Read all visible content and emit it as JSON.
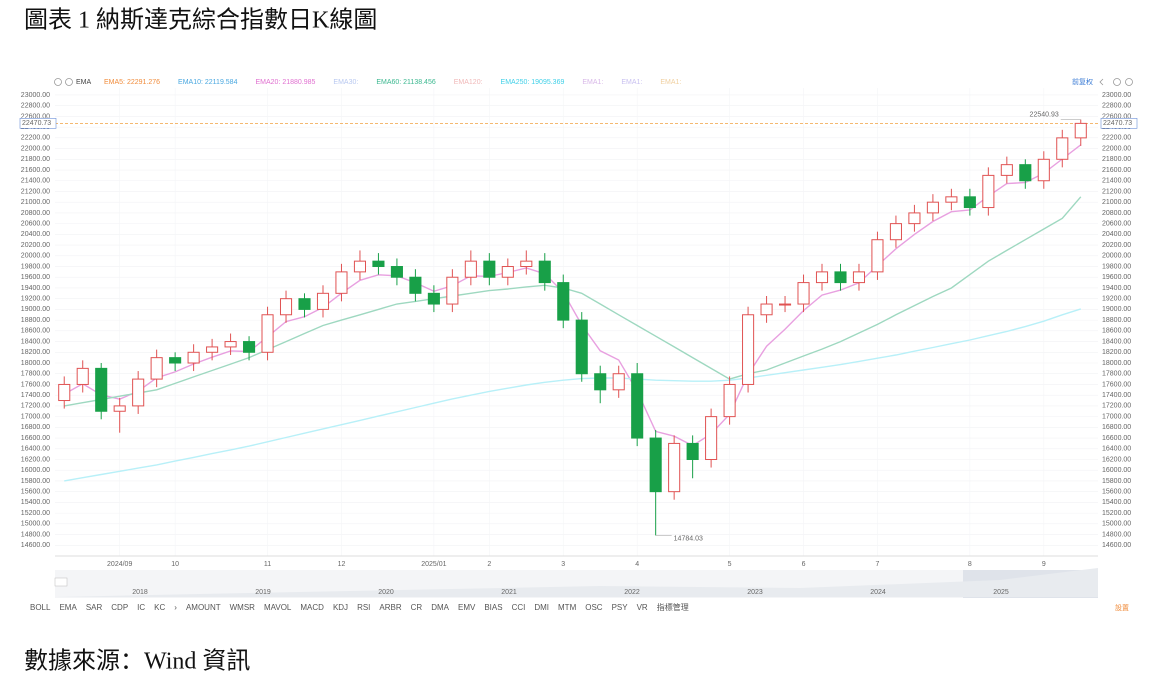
{
  "chart_data": {
    "type": "candlestick",
    "title": "圖表 1 納斯達克綜合指數日K線圖",
    "source": "數據來源：Wind 資訊",
    "toolbar": "EMA",
    "adjust": "前复权",
    "settings": "設置",
    "legend": [
      {
        "text": "EMA5:  22291.276",
        "color": "#f08c3c"
      },
      {
        "text": "EMA10:  22119.584",
        "color": "#4aa8e0"
      },
      {
        "text": "EMA20:  21880.985",
        "color": "#e070d0"
      },
      {
        "text": "EMA30:",
        "color": "#b8c8f0"
      },
      {
        "text": "EMA60:  21138.456",
        "color": "#3cb890"
      },
      {
        "text": "EMA120:",
        "color": "#f0b8b8"
      },
      {
        "text": "EMA250:  19095.369",
        "color": "#40d0e8"
      },
      {
        "text": "EMA1:",
        "color": "#d8b8e8"
      },
      {
        "text": "EMA1:",
        "color": "#c8c0f0"
      },
      {
        "text": "EMA1:",
        "color": "#f0d0a0"
      }
    ],
    "tabs": [
      "BOLL",
      "EMA",
      "SAR",
      "CDP",
      "IC",
      "KC",
      "›",
      "AMOUNT",
      "WMSR",
      "MAVOL",
      "MACD",
      "KDJ",
      "RSI",
      "ARBR",
      "CR",
      "DMA",
      "EMV",
      "BIAS",
      "CCI",
      "DMI",
      "MTM",
      "OSC",
      "PSY",
      "VR",
      "指標管理"
    ],
    "navigator_years": [
      "2018",
      "2019",
      "2020",
      "2021",
      "2022",
      "2023",
      "2024",
      "2025"
    ],
    "categories": [
      null,
      null,
      null,
      "2024/09",
      null,
      null,
      "10",
      null,
      null,
      null,
      null,
      "11",
      null,
      null,
      null,
      "12",
      null,
      null,
      null,
      null,
      "2025/01",
      null,
      null,
      "2",
      null,
      null,
      null,
      "3",
      null,
      null,
      null,
      "4",
      null,
      null,
      null,
      null,
      "5",
      null,
      null,
      null,
      "6",
      null,
      null,
      null,
      "7",
      null,
      null,
      null,
      null,
      "8",
      null,
      null,
      null,
      "9",
      null,
      null
    ],
    "open": [
      17300,
      17600,
      17900,
      17100,
      17200,
      17700,
      18100,
      18000,
      18200,
      18300,
      18400,
      18200,
      18900,
      19200,
      19000,
      19300,
      19700,
      19900,
      19800,
      19600,
      19300,
      19100,
      19600,
      19900,
      19600,
      19800,
      19900,
      19500,
      18800,
      17800,
      17500,
      17800,
      16600,
      15600,
      16500,
      16200,
      17000,
      17600,
      18900,
      19100,
      19100,
      19500,
      19700,
      19500,
      19700,
      20300,
      20600,
      20800,
      21000,
      21100,
      20900,
      21500,
      21700,
      21400,
      21800,
      22200
    ],
    "close": [
      17600,
      17900,
      17100,
      17200,
      17700,
      18100,
      18000,
      18200,
      18300,
      18400,
      18200,
      18900,
      19200,
      19000,
      19300,
      19700,
      19900,
      19800,
      19600,
      19300,
      19100,
      19600,
      19900,
      19600,
      19800,
      19900,
      19500,
      18800,
      17800,
      17500,
      17800,
      16600,
      15600,
      16500,
      16200,
      17000,
      17600,
      18900,
      19100,
      19100,
      19500,
      19700,
      19500,
      19700,
      20300,
      20600,
      20800,
      21000,
      21100,
      20900,
      21500,
      21700,
      21400,
      21800,
      22200,
      22470
    ],
    "high": [
      17750,
      18050,
      18000,
      17350,
      17850,
      18250,
      18200,
      18350,
      18450,
      18550,
      18500,
      19050,
      19350,
      19300,
      19450,
      19850,
      20100,
      20050,
      19950,
      19750,
      19450,
      19750,
      20100,
      20050,
      19950,
      20100,
      20050,
      19650,
      18950,
      17950,
      17950,
      18000,
      16750,
      16650,
      16650,
      17150,
      17750,
      19050,
      19250,
      19250,
      19650,
      19850,
      19850,
      19850,
      20450,
      20750,
      20950,
      21150,
      21250,
      21250,
      21650,
      21850,
      21800,
      21950,
      22350,
      22540.93
    ],
    "low": [
      17150,
      17450,
      16950,
      16700,
      17050,
      17550,
      17850,
      17850,
      18050,
      18150,
      18050,
      18050,
      18750,
      18850,
      18850,
      19150,
      19550,
      19650,
      19450,
      19150,
      18950,
      18950,
      19450,
      19450,
      19450,
      19650,
      19350,
      18650,
      17650,
      17250,
      17350,
      16450,
      14784.03,
      15450,
      15850,
      16050,
      16850,
      17450,
      18750,
      18950,
      18950,
      19350,
      19350,
      19350,
      19550,
      20150,
      20450,
      20650,
      20850,
      20750,
      20750,
      21350,
      21250,
      21250,
      21650,
      22050
    ],
    "up_color": "#e05252",
    "down_color": "#18a048",
    "series": [
      {
        "name": "EMA20",
        "color": "#e8a0e0",
        "values": [
          17420,
          17612,
          17407,
          17324,
          17474,
          17725,
          17835,
          17981,
          18109,
          18225,
          18215,
          18489,
          18773,
          18864,
          19038,
          19303,
          19542,
          19645,
          19627,
          19496,
          19338,
          19443,
          19626,
          19616,
          19689,
          19773,
          19664,
          19318,
          18711,
          18227,
          18056,
          17474,
          16724,
          16634,
          16460,
          16676,
          17046,
          17788,
          18313,
          18628,
          18977,
          19266,
          19360,
          19496,
          19818,
          20131,
          20399,
          20639,
          20823,
          20854,
          21112,
          21347,
          21368,
          21541,
          21805,
          22071
        ]
      },
      {
        "name": "EMA60",
        "color": "#9ed8c0",
        "values": [
          17200,
          17260,
          17320,
          17380,
          17440,
          17500,
          17620,
          17740,
          17860,
          17980,
          18100,
          18250,
          18400,
          18550,
          18700,
          18800,
          18900,
          19000,
          19100,
          19150,
          19200,
          19250,
          19300,
          19350,
          19380,
          19420,
          19450,
          19400,
          19300,
          19100,
          18900,
          18700,
          18500,
          18300,
          18100,
          17900,
          17700,
          17800,
          17870,
          18000,
          18130,
          18260,
          18400,
          18560,
          18720,
          18900,
          19070,
          19240,
          19400,
          19650,
          19900,
          20100,
          20300,
          20500,
          20700,
          21100
        ]
      },
      {
        "name": "EMA250",
        "color": "#b8f0f8",
        "values": [
          15800,
          15860,
          15920,
          15980,
          16040,
          16100,
          16170,
          16240,
          16310,
          16380,
          16450,
          16530,
          16610,
          16690,
          16770,
          16850,
          16930,
          17010,
          17090,
          17170,
          17250,
          17330,
          17400,
          17470,
          17530,
          17590,
          17640,
          17680,
          17710,
          17720,
          17720,
          17700,
          17680,
          17670,
          17660,
          17660,
          17680,
          17720,
          17770,
          17820,
          17870,
          17920,
          17970,
          18030,
          18090,
          18150,
          18220,
          18290,
          18360,
          18430,
          18510,
          18590,
          18680,
          18780,
          18900,
          19010
        ]
      }
    ],
    "price_line": {
      "value": 22470.73,
      "label": "22470.73",
      "color": "#f0a040"
    },
    "high_mark": {
      "value": 22540.93,
      "label": "22540.93",
      "index": 55
    },
    "low_mark": {
      "value": 14784.03,
      "label": "14784.03",
      "index": 32
    },
    "ylim": [
      14400,
      23130
    ],
    "yticks": [
      {
        "value": 23000,
        "label": "23000.00"
      },
      {
        "value": 22800,
        "label": "22800.00"
      },
      {
        "value": 22600,
        "label": "22600.00"
      },
      {
        "value": 22400,
        "label": "22400.00"
      },
      {
        "value": 22200,
        "label": "22200.00"
      },
      {
        "value": 22000,
        "label": "22000.00"
      },
      {
        "value": 21800,
        "label": "21800.00"
      },
      {
        "value": 21600,
        "label": "21600.00"
      },
      {
        "value": 21400,
        "label": "21400.00"
      },
      {
        "value": 21200,
        "label": "21200.00"
      },
      {
        "value": 21000,
        "label": "21000.00"
      },
      {
        "value": 20800,
        "label": "20800.00"
      },
      {
        "value": 20600,
        "label": "20600.00"
      },
      {
        "value": 20400,
        "label": "20400.00"
      },
      {
        "value": 20200,
        "label": "20200.00"
      },
      {
        "value": 20000,
        "label": "20000.00"
      },
      {
        "value": 19800,
        "label": "19800.00"
      },
      {
        "value": 19600,
        "label": "19600.00"
      },
      {
        "value": 19400,
        "label": "19400.00"
      },
      {
        "value": 19200,
        "label": "19200.00"
      },
      {
        "value": 19000,
        "label": "19000.00"
      },
      {
        "value": 18800,
        "label": "18800.00"
      },
      {
        "value": 18600,
        "label": "18600.00"
      },
      {
        "value": 18400,
        "label": "18400.00"
      },
      {
        "value": 18200,
        "label": "18200.00"
      },
      {
        "value": 18000,
        "label": "18000.00"
      },
      {
        "value": 17800,
        "label": "17800.00"
      },
      {
        "value": 17600,
        "label": "17600.00"
      },
      {
        "value": 17400,
        "label": "17400.00"
      },
      {
        "value": 17200,
        "label": "17200.00"
      },
      {
        "value": 17000,
        "label": "17000.00"
      },
      {
        "value": 16800,
        "label": "16800.00"
      },
      {
        "value": 16600,
        "label": "16600.00"
      },
      {
        "value": 16400,
        "label": "16400.00"
      },
      {
        "value": 16200,
        "label": "16200.00"
      },
      {
        "value": 16000,
        "label": "16000.00"
      },
      {
        "value": 15800,
        "label": "15800.00"
      },
      {
        "value": 15600,
        "label": "15600.00"
      },
      {
        "value": 15400,
        "label": "15400.00"
      },
      {
        "value": 15200,
        "label": "15200.00"
      },
      {
        "value": 15000,
        "label": "15000.00"
      },
      {
        "value": 14800,
        "label": "14800.00"
      },
      {
        "value": 14600,
        "label": "14600.00"
      }
    ],
    "grid": true
  }
}
